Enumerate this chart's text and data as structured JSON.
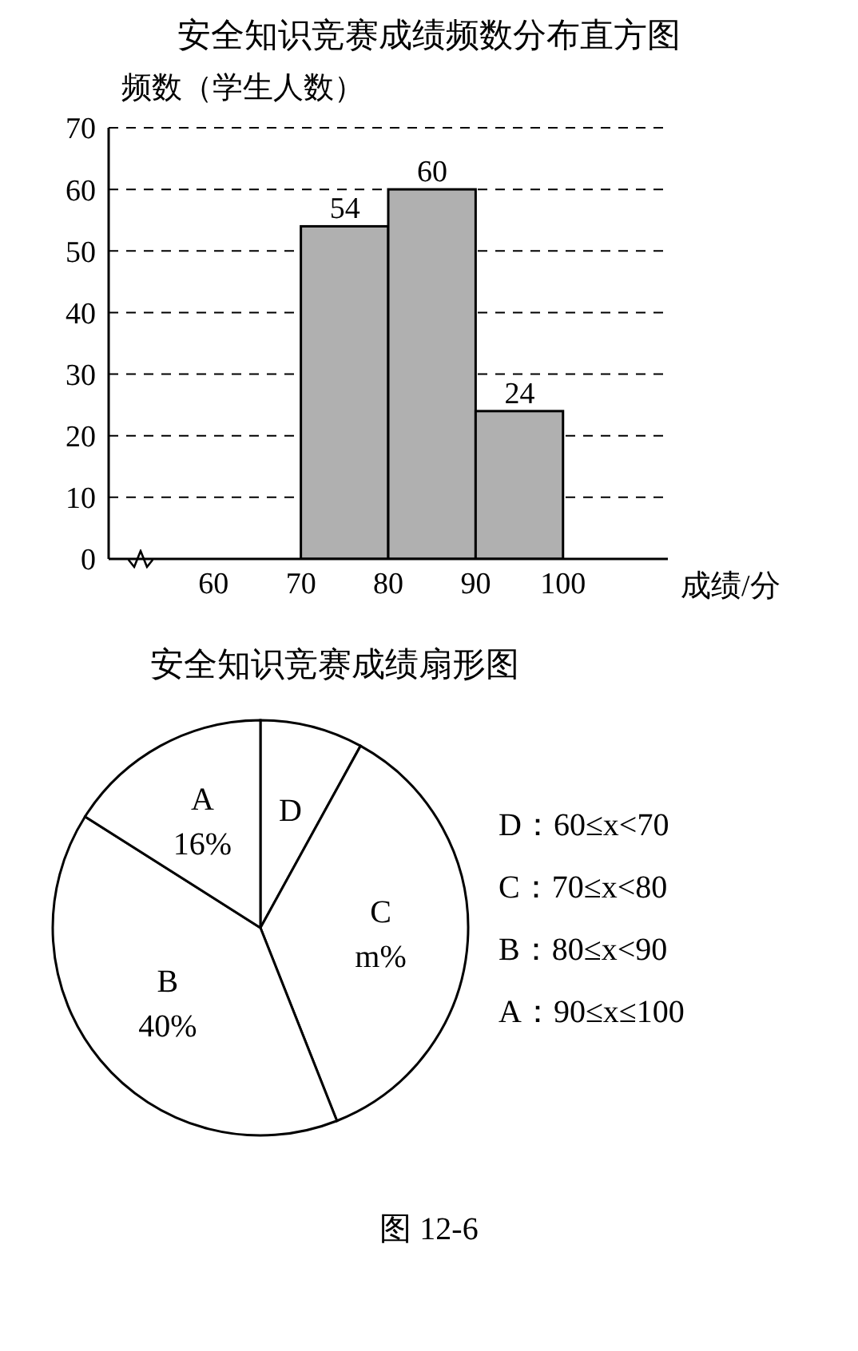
{
  "chart_data": [
    {
      "type": "histogram",
      "title": "安全知识竞赛成绩频数分布直方图",
      "ylabel": "频数（学生人数）",
      "xlabel": "成绩/分",
      "bins": [
        60,
        70,
        80,
        90,
        100
      ],
      "values": [
        null,
        54,
        60,
        24
      ],
      "color": "#b0b0b0",
      "xlim": [
        48,
        112
      ],
      "xticks": [
        60,
        70,
        80,
        90,
        100
      ],
      "ylim": [
        0,
        70
      ],
      "yticks": [
        0,
        10,
        20,
        30,
        40,
        50,
        60,
        70
      ],
      "grid": "y",
      "data_labels": true
    },
    {
      "type": "pie",
      "title": "安全知识竞赛成绩扇形图",
      "categories": [
        "D",
        "C",
        "B",
        "A"
      ],
      "values": [
        8,
        36,
        40,
        16
      ],
      "value_labels": [
        null,
        "m%",
        "40%",
        "16%"
      ],
      "colors": [
        "#ffffff",
        "#ffffff",
        "#ffffff",
        "#ffffff"
      ],
      "annotations": [
        "D：60≤x<70",
        "C：70≤x<80",
        "B：80≤x<90",
        "A：90≤x≤100",
        "图 12-6"
      ]
    }
  ]
}
